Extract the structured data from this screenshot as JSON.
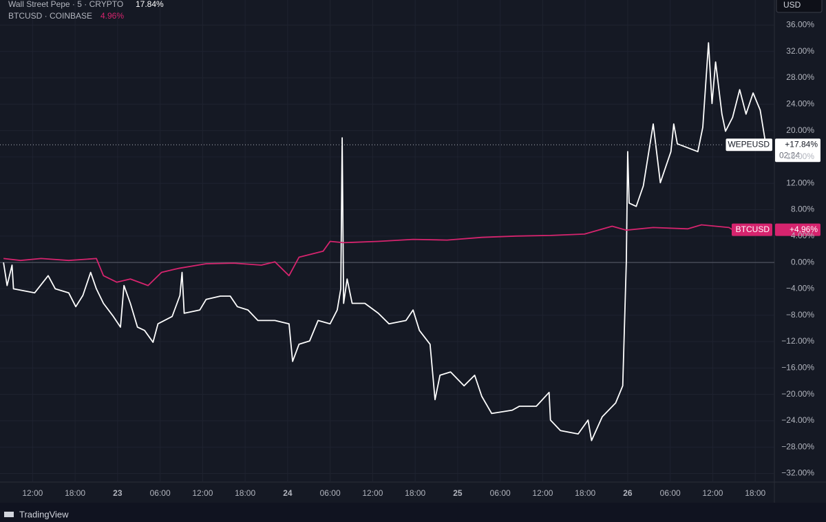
{
  "chart_data": {
    "type": "line",
    "legend": [
      {
        "label": "Wall Street Pepe · 5 · CRYPTO",
        "value_label": "17.84%"
      },
      {
        "label": "BTCUSD · COINBASE",
        "value_label": "4.96%"
      }
    ],
    "currency": "USD",
    "brand": "TradingView",
    "countdown": "02:24",
    "xlim": [
      7.4,
      116.7
    ],
    "ylim": [
      -33.3,
      39.8
    ],
    "zero_line": 0,
    "grid": true,
    "xticks": [
      {
        "value": 12,
        "label": "12:00"
      },
      {
        "value": 18,
        "label": "18:00"
      },
      {
        "value": 24,
        "label": "23"
      },
      {
        "value": 30,
        "label": "06:00"
      },
      {
        "value": 36,
        "label": "12:00"
      },
      {
        "value": 42,
        "label": "18:00"
      },
      {
        "value": 48,
        "label": "24"
      },
      {
        "value": 54,
        "label": "06:00"
      },
      {
        "value": 60,
        "label": "12:00"
      },
      {
        "value": 66,
        "label": "18:00"
      },
      {
        "value": 72,
        "label": "25"
      },
      {
        "value": 78,
        "label": "06:00"
      },
      {
        "value": 84,
        "label": "12:00"
      },
      {
        "value": 90,
        "label": "18:00"
      },
      {
        "value": 96,
        "label": "26"
      },
      {
        "value": 102,
        "label": "06:00"
      },
      {
        "value": 108,
        "label": "12:00"
      },
      {
        "value": 114,
        "label": "18:00"
      }
    ],
    "yticks": [
      {
        "value": 36,
        "label": "36.00%"
      },
      {
        "value": 32,
        "label": "32.00%"
      },
      {
        "value": 28,
        "label": "28.00%"
      },
      {
        "value": 24,
        "label": "24.00%"
      },
      {
        "value": 20,
        "label": "20.00%"
      },
      {
        "value": 16,
        "label": "16.00%"
      },
      {
        "value": 12,
        "label": "12.00%"
      },
      {
        "value": 8,
        "label": "8.00%"
      },
      {
        "value": 4,
        "label": "4.00%"
      },
      {
        "value": 0,
        "label": "0.00%"
      },
      {
        "value": -4,
        "label": "−4.00%"
      },
      {
        "value": -8,
        "label": "−8.00%"
      },
      {
        "value": -12,
        "label": "−12.00%"
      },
      {
        "value": -16,
        "label": "−16.00%"
      },
      {
        "value": -20,
        "label": "−20.00%"
      },
      {
        "value": -24,
        "label": "−24.00%"
      },
      {
        "value": -28,
        "label": "−28.00%"
      },
      {
        "value": -32,
        "label": "−32.00%"
      }
    ],
    "series": [
      {
        "name": "WEPEUSD",
        "color": "#ffffff",
        "tag_text_color": "#131722",
        "last_value": 17.84,
        "last_label": "+17.84%",
        "x": [
          7.9,
          8.4,
          9.1,
          9.3,
          12.3,
          14.2,
          15.2,
          17.1,
          18.1,
          19.1,
          20.2,
          21.0,
          22.0,
          23.4,
          24.4,
          24.9,
          25.8,
          26.8,
          27.8,
          29.0,
          29.7,
          31.7,
          32.8,
          33.1,
          33.4,
          35.6,
          36.5,
          38.5,
          39.9,
          40.9,
          42.4,
          43.8,
          46.2,
          48.2,
          48.7,
          49.6,
          51.1,
          52.3,
          54.0,
          55.0,
          55.5,
          55.7,
          55.9,
          56.4,
          57.1,
          58.9,
          60.8,
          62.3,
          64.7,
          65.7,
          66.6,
          68.1,
          68.8,
          69.5,
          71.0,
          72.9,
          74.4,
          75.4,
          76.8,
          79.7,
          80.7,
          83.1,
          84.9,
          85.1,
          86.5,
          89.0,
          90.4,
          90.9,
          92.4,
          94.3,
          95.3,
          95.8,
          96.0,
          96.2,
          97.2,
          98.2,
          99.6,
          100.6,
          102.1,
          102.5,
          103.0,
          105.9,
          106.6,
          107.4,
          107.9,
          108.4,
          109.3,
          109.8,
          110.8,
          111.8,
          112.7,
          113.7,
          114.7,
          115.5
        ],
        "values": [
          0,
          -3.5,
          -0.4,
          -4,
          -4.6,
          -2,
          -4,
          -4.6,
          -6.7,
          -5,
          -1.5,
          -4,
          -6.2,
          -8.2,
          -9.8,
          -3.5,
          -6.2,
          -9.8,
          -10.3,
          -12.1,
          -9.3,
          -8.2,
          -5,
          -1.5,
          -7.7,
          -7.2,
          -5.6,
          -5.1,
          -5.1,
          -6.7,
          -7.2,
          -8.8,
          -8.8,
          -9.3,
          -15,
          -12.4,
          -11.9,
          -8.8,
          -9.3,
          -7.2,
          -4,
          18.9,
          -6.2,
          -2.5,
          -6.2,
          -6.2,
          -7.7,
          -9.3,
          -8.8,
          -7.2,
          -10.3,
          -12.4,
          -20.8,
          -17.1,
          -16.6,
          -18.7,
          -17.1,
          -20.3,
          -22.9,
          -22.4,
          -21.8,
          -21.8,
          -19.7,
          -23.9,
          -25.5,
          -26,
          -23.9,
          -27,
          -23.4,
          -21.3,
          -18.7,
          0.1,
          16.8,
          9,
          8.5,
          11.6,
          21,
          12.1,
          16.8,
          21,
          18,
          16.8,
          20.5,
          33.3,
          24.1,
          30.4,
          22.5,
          19.9,
          22,
          26.2,
          22.5,
          25.7,
          23.1,
          17.84
        ]
      },
      {
        "name": "BTCUSD",
        "color": "#d6246e",
        "tag_text_color": "#ffffff",
        "last_value": 4.96,
        "last_label": "+4.96%",
        "x": [
          7.9,
          10.3,
          13.2,
          17.1,
          21.0,
          22.0,
          23.9,
          25.8,
          28.3,
          30.2,
          32.6,
          36.5,
          40.4,
          44.3,
          46.2,
          48.2,
          49.6,
          53.0,
          54.0,
          55.9,
          60.8,
          65.7,
          70.5,
          75.4,
          80.2,
          85.1,
          89.9,
          93.8,
          95.8,
          99.6,
          104.5,
          106.4,
          110.3,
          110.8
        ],
        "values": [
          0.6,
          0.3,
          0.6,
          0.3,
          0.6,
          -2,
          -3,
          -2.5,
          -3.5,
          -1.5,
          -0.9,
          -0.2,
          -0.1,
          -0.4,
          0.1,
          -2,
          0.8,
          1.7,
          3.2,
          3,
          3.2,
          3.5,
          3.4,
          3.8,
          4,
          4.1,
          4.3,
          5.5,
          4.9,
          5.3,
          5.1,
          5.7,
          5.3,
          4.96
        ]
      }
    ]
  }
}
